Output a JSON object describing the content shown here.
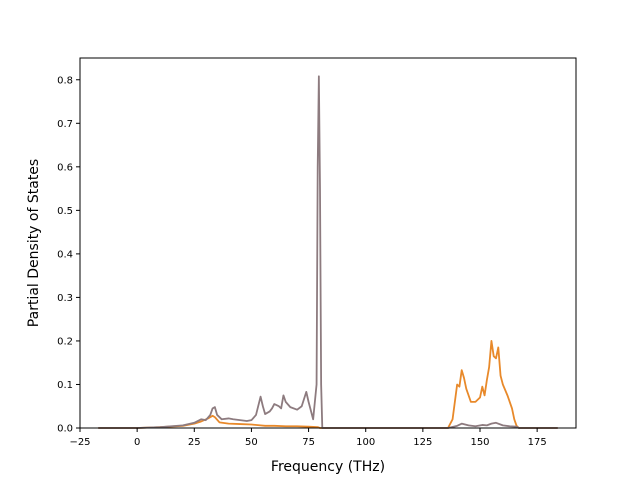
{
  "chart_data": {
    "type": "line",
    "title": "",
    "xlabel": "Frequency (THz)",
    "ylabel": "Partial Density of States",
    "xlim": [
      -25,
      192
    ],
    "ylim": [
      0,
      0.85
    ],
    "xticks": [
      -25,
      0,
      25,
      50,
      75,
      100,
      125,
      150,
      175
    ],
    "xtick_labels": [
      "−25",
      "0",
      "25",
      "50",
      "75",
      "100",
      "125",
      "150",
      "175"
    ],
    "yticks": [
      0.0,
      0.1,
      0.2,
      0.3,
      0.4,
      0.5,
      0.6,
      0.7,
      0.8
    ],
    "ytick_labels": [
      "0.0",
      "0.1",
      "0.2",
      "0.3",
      "0.4",
      "0.5",
      "0.6",
      "0.7",
      "0.8"
    ],
    "grid": false,
    "legend": "none",
    "series": [
      {
        "color": "#e8892a",
        "points": [
          [
            -17,
            0
          ],
          [
            0,
            0
          ],
          [
            10,
            0.002
          ],
          [
            20,
            0.005
          ],
          [
            25,
            0.01
          ],
          [
            28,
            0.015
          ],
          [
            31,
            0.022
          ],
          [
            33,
            0.028
          ],
          [
            34,
            0.025
          ],
          [
            36,
            0.013
          ],
          [
            40,
            0.01
          ],
          [
            45,
            0.009
          ],
          [
            50,
            0.008
          ],
          [
            54,
            0.006
          ],
          [
            56,
            0.005
          ],
          [
            60,
            0.005
          ],
          [
            65,
            0.004
          ],
          [
            70,
            0.004
          ],
          [
            75,
            0.003
          ],
          [
            79,
            0.002
          ],
          [
            80,
            0.0
          ],
          [
            100,
            0
          ],
          [
            130,
            0
          ],
          [
            136,
            0.0
          ],
          [
            138,
            0.02
          ],
          [
            140,
            0.1
          ],
          [
            141,
            0.095
          ],
          [
            142,
            0.133
          ],
          [
            143,
            0.115
          ],
          [
            144,
            0.09
          ],
          [
            146,
            0.06
          ],
          [
            148,
            0.06
          ],
          [
            150,
            0.07
          ],
          [
            151,
            0.095
          ],
          [
            152,
            0.075
          ],
          [
            153,
            0.11
          ],
          [
            154,
            0.14
          ],
          [
            155,
            0.2
          ],
          [
            156,
            0.165
          ],
          [
            157,
            0.16
          ],
          [
            158,
            0.185
          ],
          [
            159,
            0.12
          ],
          [
            160,
            0.1
          ],
          [
            162,
            0.075
          ],
          [
            164,
            0.045
          ],
          [
            165,
            0.02
          ],
          [
            166,
            0.005
          ],
          [
            167,
            0
          ],
          [
            175,
            0
          ],
          [
            184,
            0
          ]
        ]
      },
      {
        "color": "#8d7b7f",
        "points": [
          [
            -17,
            0
          ],
          [
            0,
            0
          ],
          [
            10,
            0.002
          ],
          [
            20,
            0.006
          ],
          [
            25,
            0.012
          ],
          [
            28,
            0.02
          ],
          [
            30,
            0.018
          ],
          [
            32,
            0.03
          ],
          [
            33,
            0.045
          ],
          [
            34,
            0.048
          ],
          [
            35,
            0.03
          ],
          [
            37,
            0.02
          ],
          [
            40,
            0.022
          ],
          [
            42,
            0.02
          ],
          [
            45,
            0.018
          ],
          [
            48,
            0.016
          ],
          [
            50,
            0.018
          ],
          [
            52,
            0.03
          ],
          [
            54,
            0.072
          ],
          [
            55,
            0.05
          ],
          [
            56,
            0.032
          ],
          [
            58,
            0.038
          ],
          [
            59,
            0.045
          ],
          [
            60,
            0.055
          ],
          [
            62,
            0.05
          ],
          [
            63,
            0.045
          ],
          [
            64,
            0.075
          ],
          [
            65,
            0.06
          ],
          [
            67,
            0.048
          ],
          [
            70,
            0.042
          ],
          [
            72,
            0.05
          ],
          [
            74,
            0.083
          ],
          [
            75,
            0.06
          ],
          [
            77,
            0.02
          ],
          [
            78.5,
            0.1
          ],
          [
            79,
            0.6
          ],
          [
            79.5,
            0.808
          ],
          [
            80,
            0.55
          ],
          [
            80.5,
            0.1
          ],
          [
            81,
            0.0
          ],
          [
            100,
            0
          ],
          [
            136,
            0
          ],
          [
            140,
            0.005
          ],
          [
            142,
            0.01
          ],
          [
            145,
            0.006
          ],
          [
            148,
            0.004
          ],
          [
            151,
            0.007
          ],
          [
            153,
            0.006
          ],
          [
            155,
            0.01
          ],
          [
            157,
            0.012
          ],
          [
            160,
            0.006
          ],
          [
            163,
            0.004
          ],
          [
            166,
            0.003
          ],
          [
            167,
            0
          ],
          [
            184,
            0
          ]
        ]
      }
    ]
  }
}
